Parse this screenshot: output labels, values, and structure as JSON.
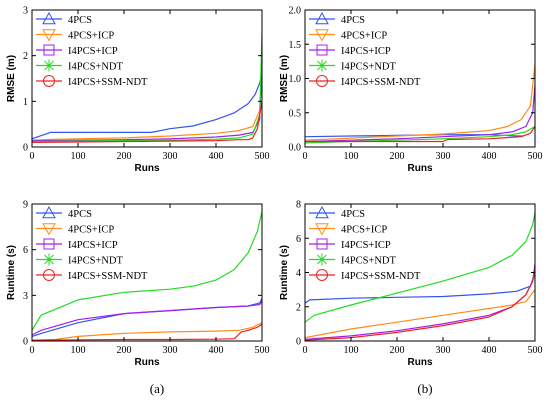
{
  "colors": {
    "4PCS": "#3355ee",
    "4PCS+ICP": "#ff8c1a",
    "I4PCS+ICP": "#a020f0",
    "I4PCS+NDT": "#22dd22",
    "I4PCS+SSM-NDT": "#ee2222"
  },
  "markers": {
    "4PCS": "triangle-up",
    "4PCS+ICP": "triangle-down",
    "I4PCS+ICP": "square",
    "I4PCS+NDT": "asterisk",
    "I4PCS+SSM-NDT": "circle"
  },
  "chart_data": [
    {
      "type": "line",
      "panel": "top-left",
      "xlabel": "Runs",
      "ylabel": "RMSE (m)",
      "xlim": [
        0,
        500
      ],
      "ylim": [
        0,
        3
      ],
      "xticks": [
        0,
        100,
        200,
        300,
        400,
        500
      ],
      "yticks": [
        0,
        1,
        2,
        3
      ],
      "legend_position": "top-left",
      "series": [
        {
          "name": "4PCS",
          "x": [
            0,
            40,
            100,
            200,
            260,
            300,
            350,
            400,
            440,
            470,
            485,
            495,
            500
          ],
          "y": [
            0.18,
            0.32,
            0.32,
            0.32,
            0.32,
            0.4,
            0.46,
            0.6,
            0.75,
            0.95,
            1.15,
            1.4,
            1.6
          ]
        },
        {
          "name": "4PCS+ICP",
          "x": [
            0,
            50,
            100,
            200,
            300,
            400,
            450,
            480,
            495,
            500
          ],
          "y": [
            0.15,
            0.17,
            0.18,
            0.2,
            0.24,
            0.3,
            0.36,
            0.45,
            0.8,
            1.7
          ]
        },
        {
          "name": "I4PCS+ICP",
          "x": [
            0,
            100,
            200,
            300,
            400,
            450,
            480,
            495,
            500
          ],
          "y": [
            0.14,
            0.15,
            0.16,
            0.18,
            0.22,
            0.26,
            0.32,
            0.6,
            1.9
          ]
        },
        {
          "name": "I4PCS+NDT",
          "x": [
            0,
            100,
            200,
            300,
            400,
            450,
            480,
            495,
            500
          ],
          "y": [
            0.12,
            0.13,
            0.14,
            0.15,
            0.17,
            0.2,
            0.28,
            0.7,
            2.5
          ]
        },
        {
          "name": "I4PCS+SSM-NDT",
          "x": [
            0,
            100,
            200,
            300,
            400,
            450,
            470,
            480,
            490,
            500
          ],
          "y": [
            0.1,
            0.11,
            0.12,
            0.13,
            0.14,
            0.16,
            0.16,
            0.2,
            0.4,
            1.0
          ]
        }
      ]
    },
    {
      "type": "line",
      "panel": "top-right",
      "xlabel": "Runs",
      "ylabel": "RMSE (m)",
      "xlim": [
        0,
        500
      ],
      "ylim": [
        0,
        2
      ],
      "xticks": [
        0,
        100,
        200,
        300,
        400,
        500
      ],
      "yticks": [
        0.0,
        0.5,
        1.0,
        1.5,
        2.0
      ],
      "legend_position": "top-left",
      "series": [
        {
          "name": "4PCS",
          "x": [
            0,
            100,
            200,
            300,
            400,
            460,
            475
          ],
          "y": [
            0.15,
            0.16,
            0.17,
            0.18,
            0.18,
            0.16,
            0.16
          ]
        },
        {
          "name": "4PCS+ICP",
          "x": [
            0,
            100,
            200,
            300,
            400,
            440,
            470,
            490,
            500
          ],
          "y": [
            0.1,
            0.13,
            0.16,
            0.19,
            0.24,
            0.3,
            0.4,
            0.6,
            1.2
          ]
        },
        {
          "name": "I4PCS+ICP",
          "x": [
            0,
            100,
            200,
            300,
            400,
            450,
            480,
            495,
            500
          ],
          "y": [
            0.08,
            0.1,
            0.12,
            0.15,
            0.18,
            0.22,
            0.3,
            0.5,
            0.9
          ]
        },
        {
          "name": "I4PCS+NDT",
          "x": [
            0,
            100,
            200,
            300,
            400,
            450,
            480,
            500
          ],
          "y": [
            0.06,
            0.08,
            0.1,
            0.12,
            0.15,
            0.18,
            0.22,
            0.3
          ]
        },
        {
          "name": "I4PCS+SSM-NDT",
          "x": [
            0,
            100,
            200,
            300,
            310,
            400,
            470,
            490,
            500
          ],
          "y": [
            0.08,
            0.08,
            0.08,
            0.08,
            0.11,
            0.12,
            0.15,
            0.2,
            0.3
          ]
        }
      ]
    },
    {
      "type": "line",
      "panel": "bottom-left",
      "xlabel": "Runs",
      "ylabel": "Runtime (s)",
      "xlim": [
        0,
        500
      ],
      "ylim": [
        0,
        9
      ],
      "xticks": [
        0,
        100,
        200,
        300,
        400,
        500
      ],
      "yticks": [
        0,
        3,
        6,
        9
      ],
      "legend_position": "top-left",
      "series": [
        {
          "name": "4PCS",
          "x": [
            0,
            20,
            100,
            200,
            300,
            400,
            470,
            495,
            500
          ],
          "y": [
            0.3,
            0.5,
            1.2,
            1.8,
            2.0,
            2.2,
            2.3,
            2.5,
            2.8
          ]
        },
        {
          "name": "4PCS+ICP",
          "x": [
            0,
            50,
            100,
            200,
            300,
            400,
            450,
            480,
            500
          ],
          "y": [
            0.05,
            0.1,
            0.3,
            0.5,
            0.6,
            0.65,
            0.7,
            0.9,
            1.2
          ]
        },
        {
          "name": "I4PCS+ICP",
          "x": [
            0,
            20,
            100,
            200,
            300,
            400,
            470,
            495,
            500
          ],
          "y": [
            0.4,
            0.7,
            1.4,
            1.8,
            2.0,
            2.2,
            2.3,
            2.4,
            2.6
          ]
        },
        {
          "name": "I4PCS+NDT",
          "x": [
            0,
            20,
            100,
            200,
            300,
            350,
            400,
            440,
            470,
            490,
            500
          ],
          "y": [
            0.7,
            1.7,
            2.7,
            3.2,
            3.4,
            3.6,
            4.0,
            4.7,
            5.8,
            7.2,
            8.5
          ]
        },
        {
          "name": "I4PCS+SSM-NDT",
          "x": [
            0,
            100,
            200,
            300,
            400,
            440,
            455,
            470,
            490,
            500
          ],
          "y": [
            0.05,
            0.08,
            0.1,
            0.1,
            0.12,
            0.15,
            0.6,
            0.7,
            0.9,
            1.1
          ]
        }
      ]
    },
    {
      "type": "line",
      "panel": "bottom-right",
      "xlabel": "Runs",
      "ylabel": "Runtime (s)",
      "xlim": [
        0,
        500
      ],
      "ylim": [
        0,
        8
      ],
      "xticks": [
        0,
        100,
        200,
        300,
        400,
        500
      ],
      "yticks": [
        0,
        2,
        4,
        6,
        8
      ],
      "legend_position": "top-left",
      "series": [
        {
          "name": "4PCS",
          "x": [
            0,
            10,
            100,
            200,
            300,
            400,
            460,
            490,
            500
          ],
          "y": [
            2.2,
            2.4,
            2.5,
            2.55,
            2.6,
            2.75,
            2.9,
            3.2,
            4.0
          ]
        },
        {
          "name": "4PCS+ICP",
          "x": [
            0,
            100,
            200,
            300,
            400,
            450,
            480,
            500
          ],
          "y": [
            0.2,
            0.7,
            1.1,
            1.5,
            1.9,
            2.1,
            2.3,
            3.0
          ]
        },
        {
          "name": "I4PCS+ICP",
          "x": [
            0,
            100,
            200,
            300,
            400,
            450,
            480,
            495,
            500
          ],
          "y": [
            0.1,
            0.3,
            0.6,
            1.0,
            1.5,
            2.0,
            2.7,
            3.5,
            4.5
          ]
        },
        {
          "name": "I4PCS+NDT",
          "x": [
            0,
            20,
            100,
            200,
            300,
            400,
            450,
            480,
            495,
            500
          ],
          "y": [
            1.1,
            1.5,
            2.1,
            2.8,
            3.5,
            4.3,
            5.0,
            5.8,
            6.8,
            7.5
          ]
        },
        {
          "name": "I4PCS+SSM-NDT",
          "x": [
            0,
            100,
            200,
            300,
            400,
            450,
            480,
            495,
            500
          ],
          "y": [
            0.05,
            0.2,
            0.5,
            0.9,
            1.4,
            2.0,
            2.7,
            3.5,
            4.0
          ]
        }
      ]
    }
  ],
  "captions": [
    "(a)",
    "(b)"
  ]
}
